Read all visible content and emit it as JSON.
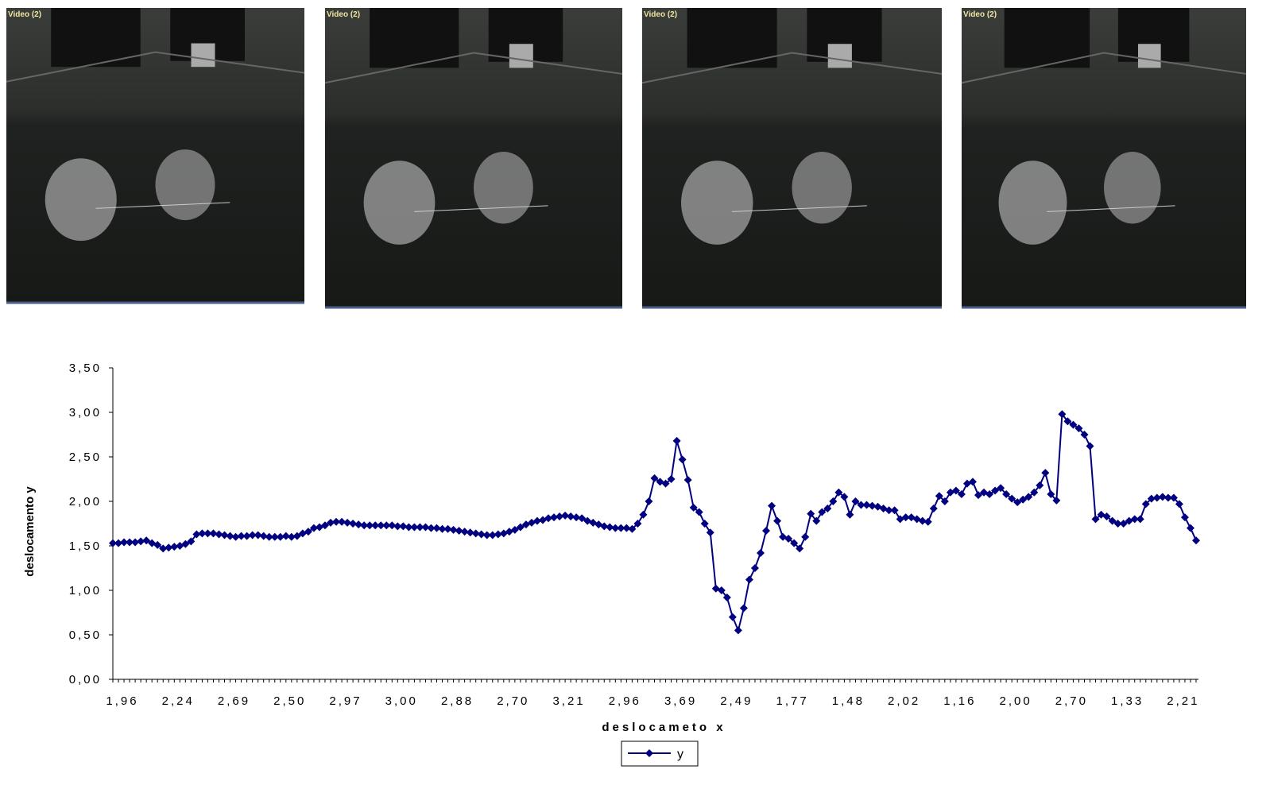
{
  "frames": [
    {
      "label": "Video (2)"
    },
    {
      "label": "Video (2)"
    },
    {
      "label": "Video (2)"
    },
    {
      "label": "Video (2)"
    }
  ],
  "chart_data": {
    "type": "line",
    "xlabel": "deslocameto x",
    "ylabel": "deslocamento y",
    "categories": [
      "1,96",
      null,
      null,
      null,
      null,
      null,
      null,
      null,
      null,
      null,
      "2,24",
      null,
      null,
      null,
      null,
      null,
      null,
      null,
      null,
      null,
      "2,69",
      null,
      null,
      null,
      null,
      null,
      null,
      null,
      null,
      null,
      "2,50",
      null,
      null,
      null,
      null,
      null,
      null,
      null,
      null,
      null,
      "2,97",
      null,
      null,
      null,
      null,
      null,
      null,
      null,
      null,
      null,
      "3,00",
      null,
      null,
      null,
      null,
      null,
      null,
      null,
      null,
      null,
      "2,88",
      null,
      null,
      null,
      null,
      null,
      null,
      null,
      null,
      null,
      "2,70",
      null,
      null,
      null,
      null,
      null,
      null,
      null,
      null,
      null,
      "3,21",
      null,
      null,
      null,
      null,
      null,
      null,
      null,
      null,
      null,
      "2,96",
      null,
      null,
      null,
      null,
      null,
      null,
      null,
      null,
      null,
      "3,69",
      null,
      null,
      null,
      null,
      null,
      null,
      null,
      null,
      null,
      "2,49",
      null,
      null,
      null,
      null,
      null,
      null,
      null,
      null,
      null,
      "1,77",
      null,
      null,
      null,
      null,
      null,
      null,
      null,
      null,
      null,
      "1,48",
      null,
      null,
      null,
      null,
      null,
      null,
      null,
      null,
      null,
      "2,02",
      null,
      null,
      null,
      null,
      null,
      null,
      null,
      null,
      null,
      "1,16",
      null,
      null,
      null,
      null,
      null,
      null,
      null,
      null,
      null,
      "2,00",
      null,
      null,
      null,
      null,
      null,
      null,
      null,
      null,
      null,
      "2,70",
      null,
      null,
      null,
      null,
      null,
      null,
      null,
      null,
      null,
      "1,33",
      null,
      null,
      null,
      null,
      null,
      null,
      null,
      null,
      null,
      "2,21",
      null,
      null,
      null,
      null
    ],
    "series": [
      {
        "name": "y",
        "color": "#000080",
        "values": [
          1.53,
          1.53,
          1.54,
          1.54,
          1.54,
          1.55,
          1.56,
          1.53,
          1.51,
          1.47,
          1.48,
          1.49,
          1.5,
          1.52,
          1.55,
          1.63,
          1.64,
          1.64,
          1.64,
          1.63,
          1.62,
          1.61,
          1.6,
          1.61,
          1.61,
          1.62,
          1.62,
          1.61,
          1.6,
          1.6,
          1.6,
          1.61,
          1.6,
          1.61,
          1.64,
          1.66,
          1.7,
          1.71,
          1.73,
          1.76,
          1.77,
          1.77,
          1.76,
          1.75,
          1.74,
          1.73,
          1.73,
          1.73,
          1.73,
          1.73,
          1.73,
          1.72,
          1.72,
          1.71,
          1.71,
          1.71,
          1.71,
          1.7,
          1.7,
          1.69,
          1.69,
          1.68,
          1.67,
          1.66,
          1.65,
          1.64,
          1.63,
          1.62,
          1.62,
          1.63,
          1.64,
          1.66,
          1.68,
          1.71,
          1.74,
          1.76,
          1.78,
          1.79,
          1.81,
          1.82,
          1.83,
          1.84,
          1.83,
          1.82,
          1.81,
          1.78,
          1.76,
          1.74,
          1.72,
          1.71,
          1.7,
          1.7,
          1.7,
          1.69,
          1.75,
          1.85,
          2.0,
          2.26,
          2.22,
          2.2,
          2.25,
          2.68,
          2.47,
          2.24,
          1.93,
          1.88,
          1.75,
          1.65,
          1.02,
          1.0,
          0.92,
          0.7,
          0.55,
          0.8,
          1.12,
          1.25,
          1.42,
          1.67,
          1.95,
          1.78,
          1.6,
          1.58,
          1.53,
          1.47,
          1.6,
          1.86,
          1.78,
          1.88,
          1.92,
          2.0,
          2.1,
          2.05,
          1.85,
          2.0,
          1.96,
          1.96,
          1.95,
          1.94,
          1.92,
          1.9,
          1.9,
          1.8,
          1.82,
          1.82,
          1.8,
          1.78,
          1.77,
          1.92,
          2.06,
          2.0,
          2.1,
          2.12,
          2.08,
          2.2,
          2.22,
          2.07,
          2.1,
          2.08,
          2.12,
          2.15,
          2.08,
          2.03,
          1.99,
          2.02,
          2.05,
          2.1,
          2.18,
          2.32,
          2.08,
          2.01,
          2.98,
          2.9,
          2.86,
          2.82,
          2.75,
          2.62,
          1.8,
          1.85,
          1.83,
          1.78,
          1.75,
          1.75,
          1.78,
          1.8,
          1.8,
          1.97,
          2.03,
          2.04,
          2.05,
          2.04,
          2.04,
          1.97,
          1.82,
          1.7,
          1.56
        ]
      }
    ],
    "ylim": [
      0,
      3.5
    ],
    "yticks": [
      {
        "value": 0,
        "label": "0,00"
      },
      {
        "value": 0.5,
        "label": "0,50"
      },
      {
        "value": 1,
        "label": "1,00"
      },
      {
        "value": 1.5,
        "label": "1,50"
      },
      {
        "value": 2,
        "label": "2,00"
      },
      {
        "value": 2.5,
        "label": "2,50"
      },
      {
        "value": 3,
        "label": "3,00"
      },
      {
        "value": 3.5,
        "label": "3,50"
      }
    ],
    "legend": "bottom"
  }
}
